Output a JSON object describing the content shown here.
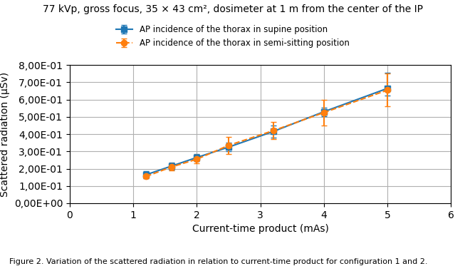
{
  "chart_data": {
    "type": "line",
    "title": "77 kVp, gross focus, 35 × 43 cm², dosimeter at 1 m from the center of the IP",
    "x_label": "Current-time product (mAs)",
    "y_label": "Scattered radiation (μSv)",
    "caption": "Figure 2. Variation of the scattered radiation in relation to current-time product for configuration 1 and 2.",
    "x": [
      1.2,
      1.6,
      2.0,
      2.5,
      3.2,
      4.0,
      5.0
    ],
    "series": [
      {
        "name": "AP incidence of the thorax in supine position",
        "values": [
          0.165,
          0.215,
          0.265,
          0.325,
          0.415,
          0.53,
          0.665
        ],
        "error_low": [
          0.02,
          0.02,
          0.02,
          0.025,
          0.035,
          0.025,
          0.04
        ],
        "error_high": [
          0.02,
          0.02,
          0.02,
          0.025,
          0.035,
          0.025,
          0.09
        ],
        "marker": "square",
        "line_style": "solid"
      },
      {
        "name": "AP incidence of the thorax in semi-sitting position",
        "values": [
          0.155,
          0.21,
          0.255,
          0.335,
          0.42,
          0.525,
          0.655
        ],
        "error_low": [
          0.01,
          0.02,
          0.025,
          0.05,
          0.05,
          0.075,
          0.095
        ],
        "error_high": [
          0.01,
          0.02,
          0.025,
          0.05,
          0.05,
          0.075,
          0.095
        ],
        "marker": "circle",
        "line_style": "dashed"
      }
    ],
    "xlim": [
      0,
      6
    ],
    "ylim": [
      0,
      0.8
    ],
    "xticks": [
      0,
      1,
      2,
      3,
      4,
      5,
      6
    ],
    "yticks": [
      {
        "value": 0.0,
        "label": "0,00E+00"
      },
      {
        "value": 0.1,
        "label": "1,00E-01"
      },
      {
        "value": 0.2,
        "label": "2,00E-01"
      },
      {
        "value": 0.3,
        "label": "3,00E-01"
      },
      {
        "value": 0.4,
        "label": "4,00E-01"
      },
      {
        "value": 0.5,
        "label": "5,00E-01"
      },
      {
        "value": 0.6,
        "label": "6,00E-01"
      },
      {
        "value": 0.7,
        "label": "7,00E-01"
      },
      {
        "value": 0.8,
        "label": "8,00E-01"
      }
    ],
    "grid": true,
    "legend": "upper center"
  }
}
